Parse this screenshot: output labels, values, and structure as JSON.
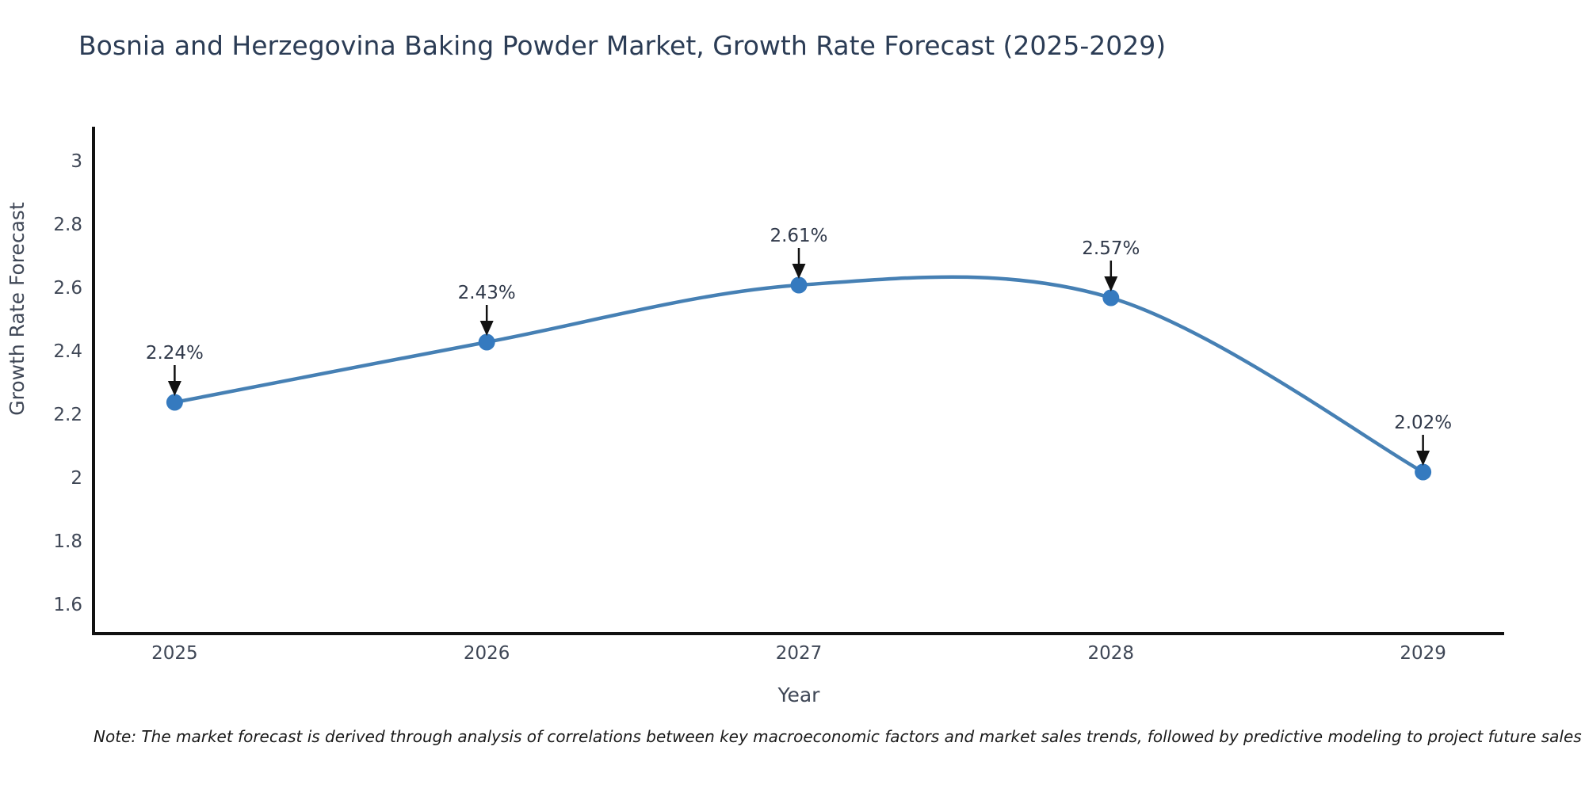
{
  "chart_data": {
    "type": "line",
    "curve": "spline",
    "title": "Bosnia and Herzegovina Baking Powder Market, Growth Rate Forecast (2025-2029)",
    "xlabel": "Year",
    "ylabel": "Growth Rate Forecast",
    "x": [
      2025,
      2026,
      2027,
      2028,
      2029
    ],
    "values": [
      2.24,
      2.43,
      2.61,
      2.57,
      2.02
    ],
    "point_labels": [
      "2.24%",
      "2.43%",
      "2.61%",
      "2.57%",
      "2.02%"
    ],
    "xticks": [
      "2025",
      "2026",
      "2027",
      "2028",
      "2029"
    ],
    "yticks": [
      3,
      2.8,
      2.6,
      2.4,
      2.2,
      2,
      1.8,
      1.6
    ],
    "ytick_labels": [
      "3",
      "2.8",
      "2.6",
      "2.4",
      "2.2",
      "2",
      "1.8",
      "1.6"
    ],
    "xlim": [
      2024.74,
      2029.26
    ],
    "ylim": [
      1.51,
      3.11
    ],
    "grid": false,
    "legend": null,
    "note": "Note: The market forecast is derived through analysis of correlations between key macroeconomic factors and market sales trends, followed by predictive modeling to project future sales",
    "colors": {
      "line": "#4680b4",
      "marker": "#357abf",
      "axis": "#111111",
      "tick_label": "#3f4756",
      "title": "#2b3c55",
      "annotation_text": "#30394a",
      "arrow": "#111111",
      "note_text": "#1a1a1a",
      "background": "#ffffff"
    }
  }
}
